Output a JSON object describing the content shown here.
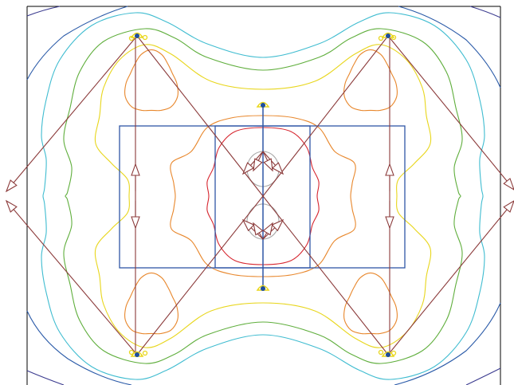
{
  "figure": {
    "kind": "contour field plot with vector arrows and node points",
    "background": "#ffffff",
    "frame_color": "#000000"
  },
  "contour_colors": {
    "level_1": "#3b3b8f",
    "level_2": "#2a5aa8",
    "level_3": "#3fbcd0",
    "level_4": "#5fae3c",
    "level_5": "#e8d61c",
    "level_6": "#e8872c",
    "level_7": "#d6252e",
    "level_8": "#a8a8a8"
  },
  "structure_color": "#2f56a6",
  "arrow_color": "#8b3a3a",
  "node_color": "#1f4e9c",
  "node_halo_color": "#e8d61c"
}
